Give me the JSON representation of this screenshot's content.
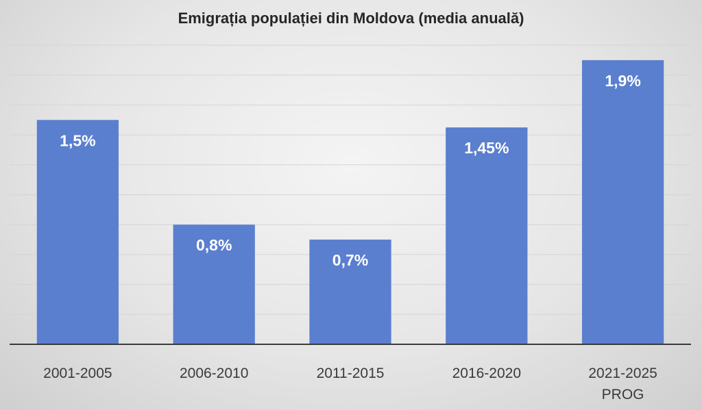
{
  "chart_data": {
    "type": "bar",
    "title": "Emigrația populației din Moldova (media anuală)",
    "categories": [
      [
        "2001-2005"
      ],
      [
        "2006-2010"
      ],
      [
        "2011-2015"
      ],
      [
        "2016-2020"
      ],
      [
        "2021-2025",
        "PROG"
      ]
    ],
    "values": [
      1.5,
      0.8,
      0.7,
      1.45,
      1.9
    ],
    "data_labels": [
      "1,5%",
      "0,8%",
      "0,7%",
      "1,45%",
      "1,9%"
    ],
    "xlabel": "",
    "ylabel": "",
    "ylim": [
      0,
      2.0
    ],
    "grid": true,
    "grid_step": 0.2,
    "colors": {
      "bar": "#5b7fcf",
      "label": "#ffffff"
    }
  }
}
